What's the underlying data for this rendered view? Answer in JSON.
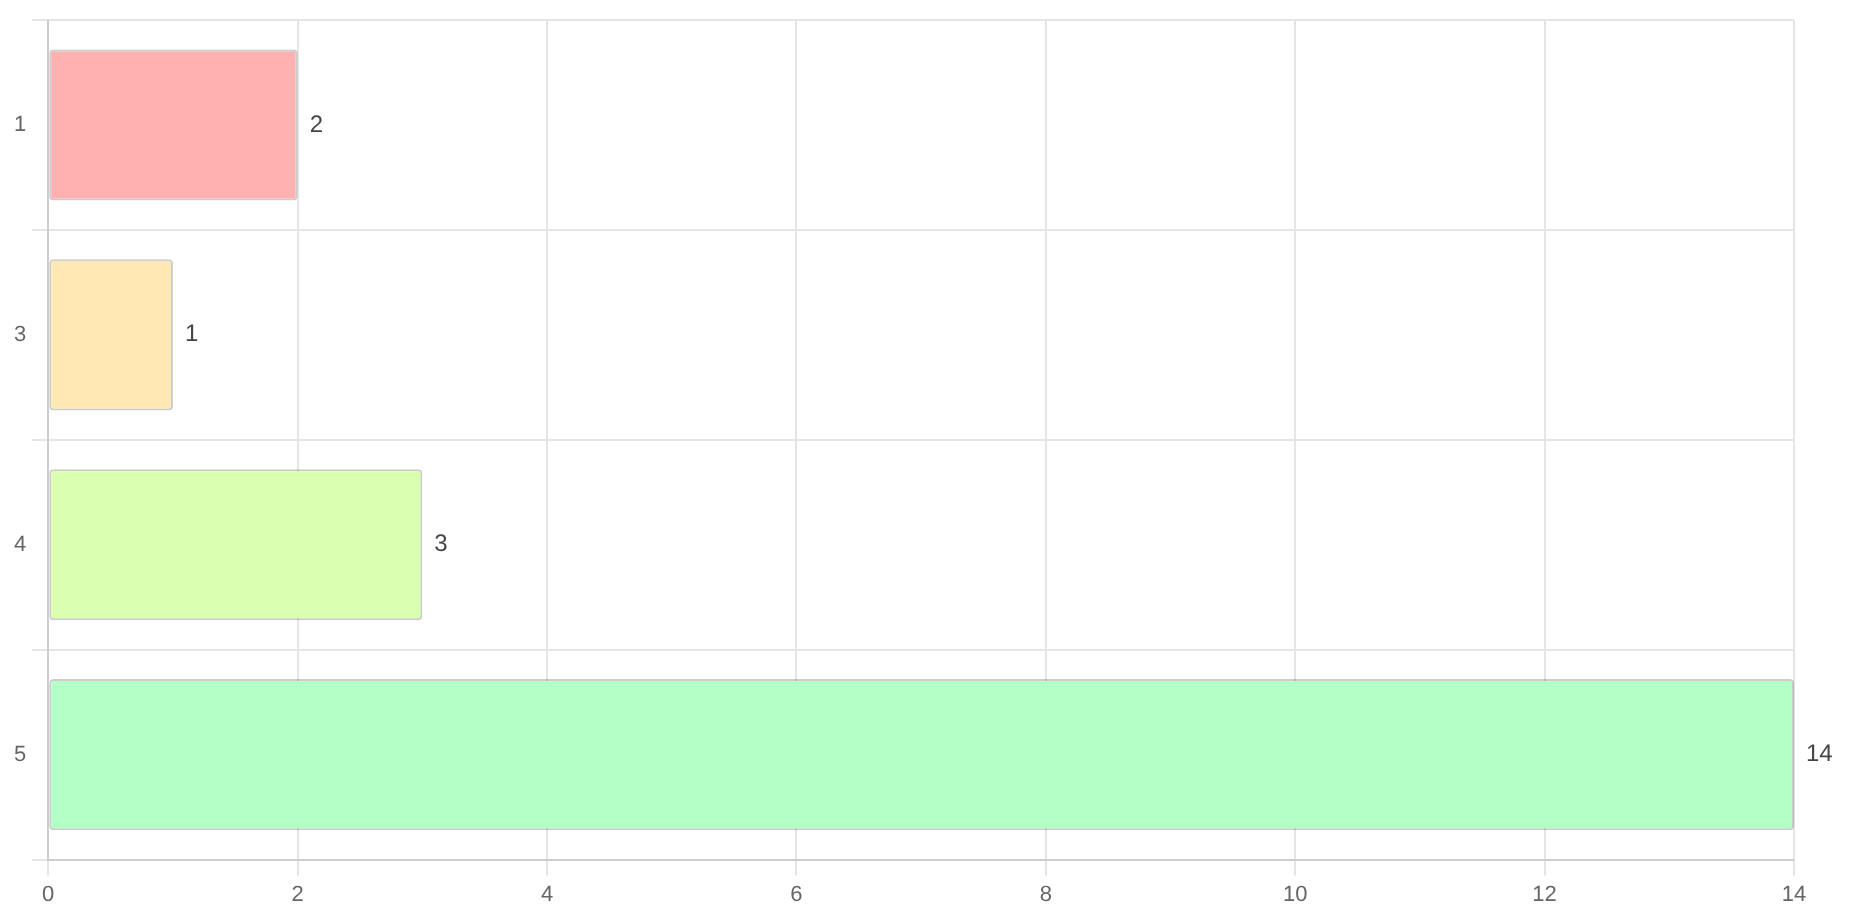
{
  "chart_data": {
    "type": "bar",
    "orientation": "horizontal",
    "categories": [
      "1",
      "3",
      "4",
      "5"
    ],
    "values": [
      2,
      1,
      3,
      14
    ],
    "colors": [
      "#ffb1b1",
      "#ffe8b3",
      "#dbffb1",
      "#b3ffc6"
    ],
    "xlim": [
      0,
      14
    ],
    "xticks": [
      0,
      2,
      4,
      6,
      8,
      10,
      12,
      14
    ],
    "grid": true,
    "data_labels": true,
    "legend": false
  }
}
